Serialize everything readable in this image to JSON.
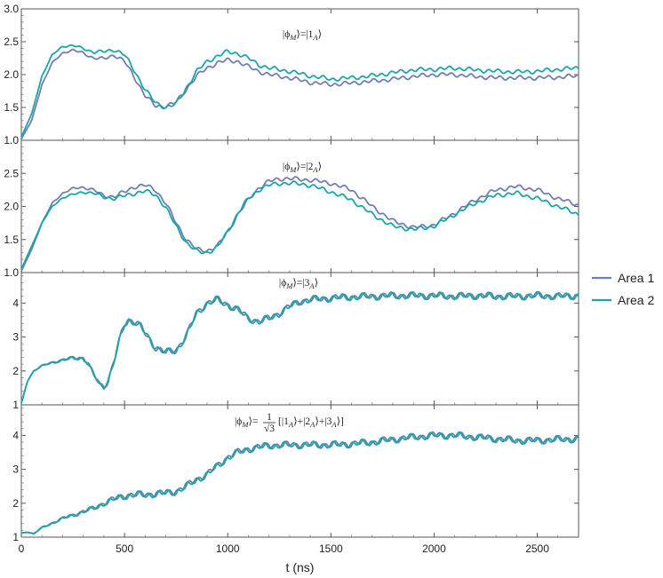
{
  "chart_data": {
    "type": "line",
    "xlabel": "t (ns)",
    "xlim": [
      0,
      2700
    ],
    "x_ticks": [
      0,
      500,
      1000,
      1500,
      2000,
      2500
    ],
    "series_meta": [
      {
        "name": "Area 1",
        "color": "#6f7fb4"
      },
      {
        "name": "Area 2",
        "color": "#1aa6a6"
      }
    ],
    "panels": [
      {
        "title": "|ϕ_M⟩=|1_A⟩",
        "title_parts": [
          "|ϕ",
          "M",
          "⟩=|1",
          "A",
          "⟩"
        ],
        "ylim": [
          1.0,
          3.0
        ],
        "y_ticks": [
          1.0,
          1.5,
          2.0,
          2.5,
          3.0
        ],
        "y_tick_labels": [
          "1.0",
          "1.5",
          "2.0",
          "2.5",
          "3.0"
        ],
        "series": [
          {
            "name": "Area 1",
            "x": [
              0,
              50,
              100,
              150,
              200,
              250,
              300,
              350,
              400,
              450,
              500,
              550,
              600,
              650,
              700,
              750,
              800,
              850,
              900,
              950,
              1000,
              1050,
              1100,
              1150,
              1200,
              1300,
              1400,
              1500,
              1600,
              1700,
              1800,
              1900,
              2000,
              2100,
              2200,
              2300,
              2400,
              2500,
              2600,
              2700
            ],
            "y": [
              1.02,
              1.3,
              1.85,
              2.18,
              2.33,
              2.37,
              2.33,
              2.25,
              2.24,
              2.3,
              2.2,
              1.95,
              1.68,
              1.52,
              1.52,
              1.58,
              1.78,
              1.98,
              2.1,
              2.18,
              2.22,
              2.2,
              2.12,
              2.05,
              2.0,
              1.95,
              1.88,
              1.85,
              1.87,
              1.9,
              1.93,
              1.97,
              2.0,
              2.0,
              1.97,
              1.95,
              1.95,
              1.95,
              1.96,
              1.98
            ]
          },
          {
            "name": "Area 2",
            "x": [
              0,
              50,
              100,
              150,
              200,
              250,
              300,
              350,
              400,
              450,
              500,
              550,
              600,
              650,
              700,
              750,
              800,
              850,
              900,
              950,
              1000,
              1050,
              1100,
              1150,
              1200,
              1300,
              1400,
              1500,
              1600,
              1700,
              1800,
              1900,
              2000,
              2100,
              2200,
              2300,
              2400,
              2500,
              2600,
              2700
            ],
            "y": [
              1.05,
              1.4,
              1.98,
              2.3,
              2.43,
              2.44,
              2.4,
              2.34,
              2.35,
              2.38,
              2.3,
              2.05,
              1.77,
              1.57,
              1.5,
              1.55,
              1.8,
              2.05,
              2.2,
              2.28,
              2.35,
              2.32,
              2.25,
              2.15,
              2.1,
              2.05,
              1.98,
              1.93,
              1.95,
              1.98,
              2.03,
              2.07,
              2.08,
              2.1,
              2.07,
              2.05,
              2.04,
              2.05,
              2.08,
              2.1
            ]
          }
        ]
      },
      {
        "title": "|ϕ_M⟩=|2_A⟩",
        "title_parts": [
          "|ϕ",
          "M",
          "⟩=|2",
          "A",
          "⟩"
        ],
        "ylim": [
          1.0,
          3.0
        ],
        "y_ticks": [
          1.0,
          1.5,
          2.0,
          2.5
        ],
        "y_tick_labels": [
          "1.0",
          "1.5",
          "2.0",
          "2.5"
        ],
        "series": [
          {
            "name": "Area 1",
            "x": [
              0,
              50,
              100,
              150,
              200,
              250,
              300,
              350,
              400,
              450,
              500,
              550,
              600,
              650,
              700,
              750,
              800,
              850,
              900,
              950,
              1000,
              1050,
              1100,
              1150,
              1200,
              1250,
              1300,
              1350,
              1400,
              1500,
              1600,
              1700,
              1800,
              1900,
              2000,
              2100,
              2200,
              2300,
              2400,
              2500,
              2600,
              2700
            ],
            "y": [
              1.02,
              1.35,
              1.75,
              2.05,
              2.2,
              2.27,
              2.29,
              2.25,
              2.16,
              2.15,
              2.22,
              2.3,
              2.32,
              2.25,
              2.05,
              1.75,
              1.5,
              1.35,
              1.33,
              1.4,
              1.62,
              1.88,
              2.1,
              2.28,
              2.38,
              2.42,
              2.42,
              2.41,
              2.4,
              2.35,
              2.25,
              2.0,
              1.78,
              1.68,
              1.72,
              1.9,
              2.1,
              2.25,
              2.3,
              2.25,
              2.12,
              2.02
            ]
          },
          {
            "name": "Area 2",
            "x": [
              0,
              50,
              100,
              150,
              200,
              250,
              300,
              350,
              400,
              450,
              500,
              550,
              600,
              650,
              700,
              750,
              800,
              850,
              900,
              950,
              1000,
              1050,
              1100,
              1150,
              1200,
              1250,
              1300,
              1350,
              1400,
              1500,
              1600,
              1700,
              1800,
              1900,
              2000,
              2100,
              2200,
              2300,
              2400,
              2500,
              2600,
              2700
            ],
            "y": [
              1.05,
              1.4,
              1.75,
              2.0,
              2.13,
              2.18,
              2.22,
              2.2,
              2.14,
              2.12,
              2.16,
              2.2,
              2.23,
              2.18,
              1.98,
              1.7,
              1.45,
              1.32,
              1.3,
              1.38,
              1.62,
              1.9,
              2.12,
              2.25,
              2.32,
              2.35,
              2.35,
              2.34,
              2.32,
              2.22,
              2.1,
              1.88,
              1.7,
              1.65,
              1.7,
              1.88,
              2.05,
              2.17,
              2.2,
              2.12,
              2.0,
              1.88
            ]
          }
        ]
      },
      {
        "title": "|ϕ_M⟩=|3_A⟩",
        "title_parts": [
          "|ϕ",
          "M",
          "⟩=|3",
          "A",
          "⟩"
        ],
        "ylim": [
          1,
          4.9
        ],
        "y_ticks": [
          1,
          2,
          3,
          4
        ],
        "y_tick_labels": [
          "1",
          "2",
          "3",
          "4"
        ],
        "series": [
          {
            "name": "Area 1",
            "x": [
              0,
              30,
              60,
              100,
              150,
              200,
              250,
              300,
              320,
              350,
              380,
              400,
              420,
              450,
              480,
              500,
              520,
              550,
              580,
              600,
              650,
              700,
              750,
              800,
              850,
              900,
              950,
              1000,
              1050,
              1100,
              1150,
              1200,
              1250,
              1300,
              1350,
              1400,
              1500,
              1600,
              1700,
              1800,
              1900,
              2000,
              2100,
              2200,
              2300,
              2400,
              2500,
              2600,
              2700
            ],
            "y": [
              1.05,
              1.7,
              2.0,
              2.15,
              2.25,
              2.32,
              2.38,
              2.38,
              2.25,
              1.9,
              1.6,
              1.55,
              1.7,
              2.3,
              3.0,
              3.38,
              3.5,
              3.45,
              3.3,
              3.1,
              2.7,
              2.55,
              2.6,
              3.05,
              3.7,
              4.0,
              4.1,
              3.95,
              3.8,
              3.55,
              3.45,
              3.55,
              3.7,
              3.9,
              4.05,
              4.1,
              4.15,
              4.18,
              4.2,
              4.22,
              4.22,
              4.22,
              4.2,
              4.22,
              4.2,
              4.2,
              4.22,
              4.2,
              4.22
            ]
          },
          {
            "name": "Area 2",
            "x": [
              0,
              30,
              60,
              100,
              150,
              200,
              250,
              300,
              320,
              350,
              380,
              400,
              420,
              450,
              480,
              500,
              520,
              550,
              580,
              600,
              650,
              700,
              750,
              800,
              850,
              900,
              950,
              1000,
              1050,
              1100,
              1150,
              1200,
              1250,
              1300,
              1350,
              1400,
              1500,
              1600,
              1700,
              1800,
              1900,
              2000,
              2100,
              2200,
              2300,
              2400,
              2500,
              2600,
              2700
            ],
            "y": [
              1.05,
              1.7,
              2.0,
              2.15,
              2.25,
              2.32,
              2.38,
              2.38,
              2.25,
              1.9,
              1.6,
              1.55,
              1.7,
              2.3,
              3.0,
              3.38,
              3.5,
              3.45,
              3.3,
              3.1,
              2.7,
              2.55,
              2.6,
              3.05,
              3.7,
              4.0,
              4.1,
              3.95,
              3.8,
              3.55,
              3.45,
              3.55,
              3.7,
              3.9,
              4.05,
              4.1,
              4.15,
              4.18,
              4.2,
              4.22,
              4.22,
              4.22,
              4.2,
              4.22,
              4.2,
              4.2,
              4.22,
              4.2,
              4.22
            ]
          }
        ]
      },
      {
        "title": "|ϕ_M⟩=1/√3 [|1_A⟩+|2_A⟩+|3_A⟩]",
        "title_parts": [
          "|ϕ",
          "M",
          "⟩=",
          "1",
          "√3",
          "[|1",
          "A",
          "⟩+|2",
          "A",
          "⟩+|3",
          "A",
          "⟩]"
        ],
        "ylim": [
          1,
          4.9
        ],
        "y_ticks": [
          1,
          2,
          3,
          4
        ],
        "y_tick_labels": [
          "1",
          "2",
          "3",
          "4"
        ],
        "series": [
          {
            "name": "Area 1",
            "x": [
              0,
              30,
              60,
              100,
              200,
              300,
              350,
              400,
              450,
              500,
              550,
              600,
              650,
              700,
              750,
              800,
              850,
              900,
              950,
              1000,
              1050,
              1100,
              1150,
              1200,
              1300,
              1400,
              1500,
              1600,
              1700,
              1800,
              1900,
              2000,
              2100,
              2200,
              2300,
              2400,
              2500,
              2600,
              2700
            ],
            "y": [
              1.12,
              1.15,
              1.1,
              1.28,
              1.55,
              1.75,
              1.85,
              2.0,
              2.12,
              2.22,
              2.25,
              2.25,
              2.28,
              2.3,
              2.35,
              2.5,
              2.7,
              2.85,
              3.1,
              3.35,
              3.5,
              3.6,
              3.65,
              3.7,
              3.72,
              3.72,
              3.72,
              3.75,
              3.8,
              3.88,
              3.95,
              4.0,
              4.0,
              3.95,
              3.9,
              3.85,
              3.85,
              3.88,
              3.9
            ]
          },
          {
            "name": "Area 2",
            "x": [
              0,
              30,
              60,
              100,
              200,
              300,
              350,
              400,
              450,
              500,
              550,
              600,
              650,
              700,
              750,
              800,
              850,
              900,
              950,
              1000,
              1050,
              1100,
              1150,
              1200,
              1300,
              1400,
              1500,
              1600,
              1700,
              1800,
              1900,
              2000,
              2100,
              2200,
              2300,
              2400,
              2500,
              2600,
              2700
            ],
            "y": [
              1.12,
              1.15,
              1.1,
              1.28,
              1.55,
              1.75,
              1.85,
              2.0,
              2.12,
              2.22,
              2.25,
              2.25,
              2.28,
              2.3,
              2.35,
              2.5,
              2.7,
              2.85,
              3.1,
              3.35,
              3.5,
              3.6,
              3.65,
              3.7,
              3.72,
              3.72,
              3.72,
              3.75,
              3.8,
              3.88,
              3.95,
              4.0,
              4.0,
              3.95,
              3.9,
              3.85,
              3.85,
              3.88,
              3.9
            ]
          }
        ]
      }
    ],
    "legend": {
      "position": "right",
      "entries": [
        "Area 1",
        "Area 2"
      ]
    }
  }
}
